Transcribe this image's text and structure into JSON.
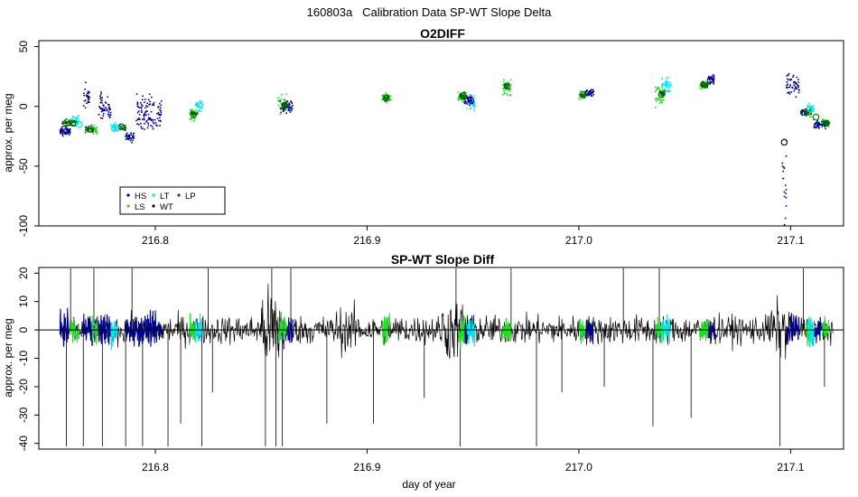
{
  "figure_title": "160803a   Calibration Data SP-WT Slope Delta",
  "colors": {
    "HS": "#00008b",
    "LS": "#22dd22",
    "LT": "#00e5ee",
    "WT": "#000000",
    "LP": "#006400",
    "axis": "#000000"
  },
  "chart_data": [
    {
      "type": "scatter",
      "title": "O2DIFF",
      "xlabel": "",
      "ylabel": "approx. per meg",
      "xlim": [
        216.745,
        217.125
      ],
      "ylim": [
        -100,
        55
      ],
      "x_ticks": [
        216.8,
        216.9,
        217.0,
        217.1
      ],
      "x_tick_labels": [
        "216.8",
        "216.9",
        "217.0",
        "217.1"
      ],
      "y_ticks": [
        50,
        0,
        -50,
        -100
      ],
      "y_tick_labels": [
        "50",
        "0",
        "-50",
        "-100"
      ],
      "grid": false,
      "legend": {
        "placement": "bottom-left",
        "entries": [
          {
            "key": "HS",
            "label": "HS"
          },
          {
            "key": "LS",
            "label": "LS"
          },
          {
            "key": "LT",
            "label": "LT"
          },
          {
            "key": "WT",
            "label": "WT"
          },
          {
            "key": "LP",
            "label": "LP"
          }
        ]
      },
      "series": [
        {
          "name": "HS",
          "clusters": [
            {
              "x": [
                216.755,
                216.76
              ],
              "y": -21,
              "spread": 3
            },
            {
              "x": [
                216.766,
                216.769
              ],
              "y": 8,
              "spread": 8
            },
            {
              "x": [
                216.773,
                216.779
              ],
              "y": 0,
              "spread": 9
            },
            {
              "x": [
                216.786,
                216.79
              ],
              "y": -26,
              "spread": 3
            },
            {
              "x": [
                216.791,
                216.803
              ],
              "y": -6,
              "spread": 11
            },
            {
              "x": [
                216.859,
                216.865
              ],
              "y": 0,
              "spread": 4
            },
            {
              "x": [
                216.946,
                216.95
              ],
              "y": 6,
              "spread": 4
            },
            {
              "x": [
                217.003,
                217.007
              ],
              "y": 11,
              "spread": 3
            },
            {
              "x": [
                217.061,
                217.064
              ],
              "y": 23,
              "spread": 4
            },
            {
              "x": [
                217.096,
                217.098
              ],
              "y": -60,
              "spread": 35
            },
            {
              "x": [
                217.098,
                217.104
              ],
              "y": 18,
              "spread": 8
            },
            {
              "x": [
                217.105,
                217.108
              ],
              "y": -5,
              "spread": 3
            },
            {
              "x": [
                217.111,
                217.117
              ],
              "y": -15,
              "spread": 3
            }
          ]
        },
        {
          "name": "LS",
          "clusters": [
            {
              "x": [
                216.77,
                216.773
              ],
              "y": -20,
              "spread": 3
            },
            {
              "x": [
                216.816,
                216.819
              ],
              "y": -7,
              "spread": 4
            },
            {
              "x": [
                216.858,
                216.862
              ],
              "y": 2,
              "spread": 6
            },
            {
              "x": [
                216.907,
                216.911
              ],
              "y": 7,
              "spread": 3
            },
            {
              "x": [
                216.943,
                216.946
              ],
              "y": 8,
              "spread": 4
            },
            {
              "x": [
                216.964,
                216.968
              ],
              "y": 16,
              "spread": 5
            },
            {
              "x": [
                217.0,
                217.003
              ],
              "y": 9,
              "spread": 3
            },
            {
              "x": [
                217.036,
                217.04
              ],
              "y": 10,
              "spread": 8
            },
            {
              "x": [
                217.057,
                217.061
              ],
              "y": 18,
              "spread": 3
            },
            {
              "x": [
                217.107,
                217.11
              ],
              "y": -4,
              "spread": 3
            },
            {
              "x": [
                217.115,
                217.118
              ],
              "y": -14,
              "spread": 3
            }
          ]
        },
        {
          "name": "LT",
          "clusters": [
            {
              "x": [
                216.76,
                216.764
              ],
              "y": -12,
              "spread": 4
            },
            {
              "x": [
                216.779,
                216.782
              ],
              "y": -17,
              "spread": 3
            },
            {
              "x": [
                216.819,
                216.822
              ],
              "y": 0,
              "spread": 4
            },
            {
              "x": [
                216.947,
                216.951
              ],
              "y": 3,
              "spread": 5
            },
            {
              "x": [
                217.039,
                217.043
              ],
              "y": 16,
              "spread": 6
            },
            {
              "x": [
                217.108,
                217.111
              ],
              "y": -2,
              "spread": 3
            }
          ]
        },
        {
          "name": "LP",
          "clusters": [
            {
              "x": [
                216.756,
                216.763
              ],
              "y": -14,
              "spread": 2
            },
            {
              "x": [
                216.767,
                216.771
              ],
              "y": -19,
              "spread": 2
            },
            {
              "x": [
                216.783,
                216.786
              ],
              "y": -18,
              "spread": 2
            },
            {
              "x": [
                216.817,
                216.82
              ],
              "y": -6,
              "spread": 2
            },
            {
              "x": [
                216.86,
                216.863
              ],
              "y": 1,
              "spread": 2
            },
            {
              "x": [
                216.908,
                216.91
              ],
              "y": 7,
              "spread": 2
            },
            {
              "x": [
                216.944,
                216.947
              ],
              "y": 9,
              "spread": 2
            },
            {
              "x": [
                216.965,
                216.967
              ],
              "y": 17,
              "spread": 2
            },
            {
              "x": [
                217.001,
                217.003
              ],
              "y": 10,
              "spread": 2
            },
            {
              "x": [
                217.038,
                217.041
              ],
              "y": 11,
              "spread": 2
            },
            {
              "x": [
                217.058,
                217.061
              ],
              "y": 18,
              "spread": 2
            },
            {
              "x": [
                217.107,
                217.11
              ],
              "y": -5,
              "spread": 2
            },
            {
              "x": [
                217.115,
                217.118
              ],
              "y": -14,
              "spread": 2
            }
          ]
        }
      ],
      "mean_markers": [
        {
          "x": 216.758,
          "y": -21,
          "color": "#00008b"
        },
        {
          "x": 216.761,
          "y": -14,
          "color": "#006400"
        },
        {
          "x": 216.764,
          "y": -15,
          "color": "#00e5ee"
        },
        {
          "x": 216.769,
          "y": -19,
          "color": "#006400"
        },
        {
          "x": 216.782,
          "y": -18,
          "color": "#00e5ee"
        },
        {
          "x": 216.784,
          "y": -17,
          "color": "#006400"
        },
        {
          "x": 216.818,
          "y": -7,
          "color": "#006400"
        },
        {
          "x": 216.821,
          "y": 1,
          "color": "#00e5ee"
        },
        {
          "x": 216.861,
          "y": 1,
          "color": "#006400"
        },
        {
          "x": 216.909,
          "y": 7,
          "color": "#006400"
        },
        {
          "x": 216.945,
          "y": 9,
          "color": "#006400"
        },
        {
          "x": 216.949,
          "y": 5,
          "color": "#00008b"
        },
        {
          "x": 216.966,
          "y": 17,
          "color": "#006400"
        },
        {
          "x": 217.002,
          "y": 10,
          "color": "#006400"
        },
        {
          "x": 217.039,
          "y": 10,
          "color": "#006400"
        },
        {
          "x": 217.042,
          "y": 18,
          "color": "#00e5ee"
        },
        {
          "x": 217.059,
          "y": 18,
          "color": "#006400"
        },
        {
          "x": 217.062,
          "y": 22,
          "color": "#00008b"
        },
        {
          "x": 217.097,
          "y": -30,
          "color": "#000000"
        },
        {
          "x": 217.106,
          "y": -5,
          "color": "#006400"
        },
        {
          "x": 217.109,
          "y": -2,
          "color": "#00e5ee"
        },
        {
          "x": 217.112,
          "y": -9,
          "color": "#006400"
        },
        {
          "x": 217.117,
          "y": -14,
          "color": "#006400"
        }
      ]
    },
    {
      "type": "line",
      "title": "SP-WT Slope Diff",
      "xlabel": "day of year",
      "ylabel": "approx. per meg",
      "xlim": [
        216.745,
        217.125
      ],
      "ylim": [
        -42,
        22
      ],
      "x_ticks": [
        216.8,
        216.9,
        217.0,
        217.1
      ],
      "x_tick_labels": [
        "216.8",
        "216.9",
        "217.0",
        "217.1"
      ],
      "y_ticks": [
        20,
        10,
        0,
        -10,
        -20,
        -30,
        -40
      ],
      "y_tick_labels": [
        "20",
        "10",
        "0",
        "-10",
        "-20",
        "-30",
        "-40"
      ],
      "zero_line": 0,
      "grid": false,
      "noise_series": {
        "name": "WT",
        "x_start": 216.755,
        "x_end": 217.12,
        "amplitude": 4.5,
        "high_noise_zones": [
          [
            216.85,
            216.86,
            3
          ],
          [
            216.935,
            216.95,
            2.2
          ],
          [
            216.885,
            216.895,
            1.6
          ],
          [
            217.09,
            217.1,
            2
          ]
        ]
      },
      "colored_segments": [
        {
          "name": "HS",
          "ranges": [
            [
              216.755,
              216.759
            ],
            [
              216.766,
              216.779
            ],
            [
              216.786,
              216.803
            ],
            [
              216.859,
              216.865
            ],
            [
              216.946,
              216.95
            ],
            [
              217.003,
              217.007
            ],
            [
              217.061,
              217.064
            ],
            [
              217.098,
              217.104
            ],
            [
              217.111,
              217.117
            ]
          ]
        },
        {
          "name": "LS",
          "ranges": [
            [
              216.76,
              216.764
            ],
            [
              216.77,
              216.773
            ],
            [
              216.816,
              216.819
            ],
            [
              216.858,
              216.862
            ],
            [
              216.907,
              216.911
            ],
            [
              216.943,
              216.946
            ],
            [
              216.964,
              216.968
            ],
            [
              217.0,
              217.003
            ],
            [
              217.036,
              217.04
            ],
            [
              217.057,
              217.061
            ],
            [
              217.107,
              217.11
            ],
            [
              217.115,
              217.118
            ]
          ]
        },
        {
          "name": "LT",
          "ranges": [
            [
              216.779,
              216.782
            ],
            [
              216.819,
              216.822
            ],
            [
              216.947,
              216.951
            ],
            [
              217.039,
              217.043
            ],
            [
              217.108,
              217.111
            ]
          ]
        }
      ],
      "spikes": [
        {
          "x": 216.758,
          "y": -41
        },
        {
          "x": 216.76,
          "y": 22
        },
        {
          "x": 216.766,
          "y": -41
        },
        {
          "x": 216.771,
          "y": 22
        },
        {
          "x": 216.775,
          "y": -41
        },
        {
          "x": 216.786,
          "y": -41
        },
        {
          "x": 216.789,
          "y": 22
        },
        {
          "x": 216.794,
          "y": -41
        },
        {
          "x": 216.806,
          "y": -41
        },
        {
          "x": 216.812,
          "y": -33
        },
        {
          "x": 216.822,
          "y": -41
        },
        {
          "x": 216.825,
          "y": 22
        },
        {
          "x": 216.827,
          "y": -22
        },
        {
          "x": 216.852,
          "y": -41
        },
        {
          "x": 216.855,
          "y": 22
        },
        {
          "x": 216.857,
          "y": -41
        },
        {
          "x": 216.86,
          "y": -41
        },
        {
          "x": 216.864,
          "y": 22
        },
        {
          "x": 216.881,
          "y": -33
        },
        {
          "x": 216.903,
          "y": -33
        },
        {
          "x": 216.927,
          "y": -24
        },
        {
          "x": 216.942,
          "y": 22
        },
        {
          "x": 216.944,
          "y": -41
        },
        {
          "x": 216.968,
          "y": 22
        },
        {
          "x": 216.98,
          "y": -41
        },
        {
          "x": 216.992,
          "y": -22
        },
        {
          "x": 217.012,
          "y": -20
        },
        {
          "x": 217.021,
          "y": 22
        },
        {
          "x": 217.035,
          "y": -34
        },
        {
          "x": 217.038,
          "y": 22
        },
        {
          "x": 217.053,
          "y": -31
        },
        {
          "x": 217.095,
          "y": -41
        },
        {
          "x": 217.106,
          "y": 22
        },
        {
          "x": 217.116,
          "y": -20
        }
      ]
    }
  ]
}
